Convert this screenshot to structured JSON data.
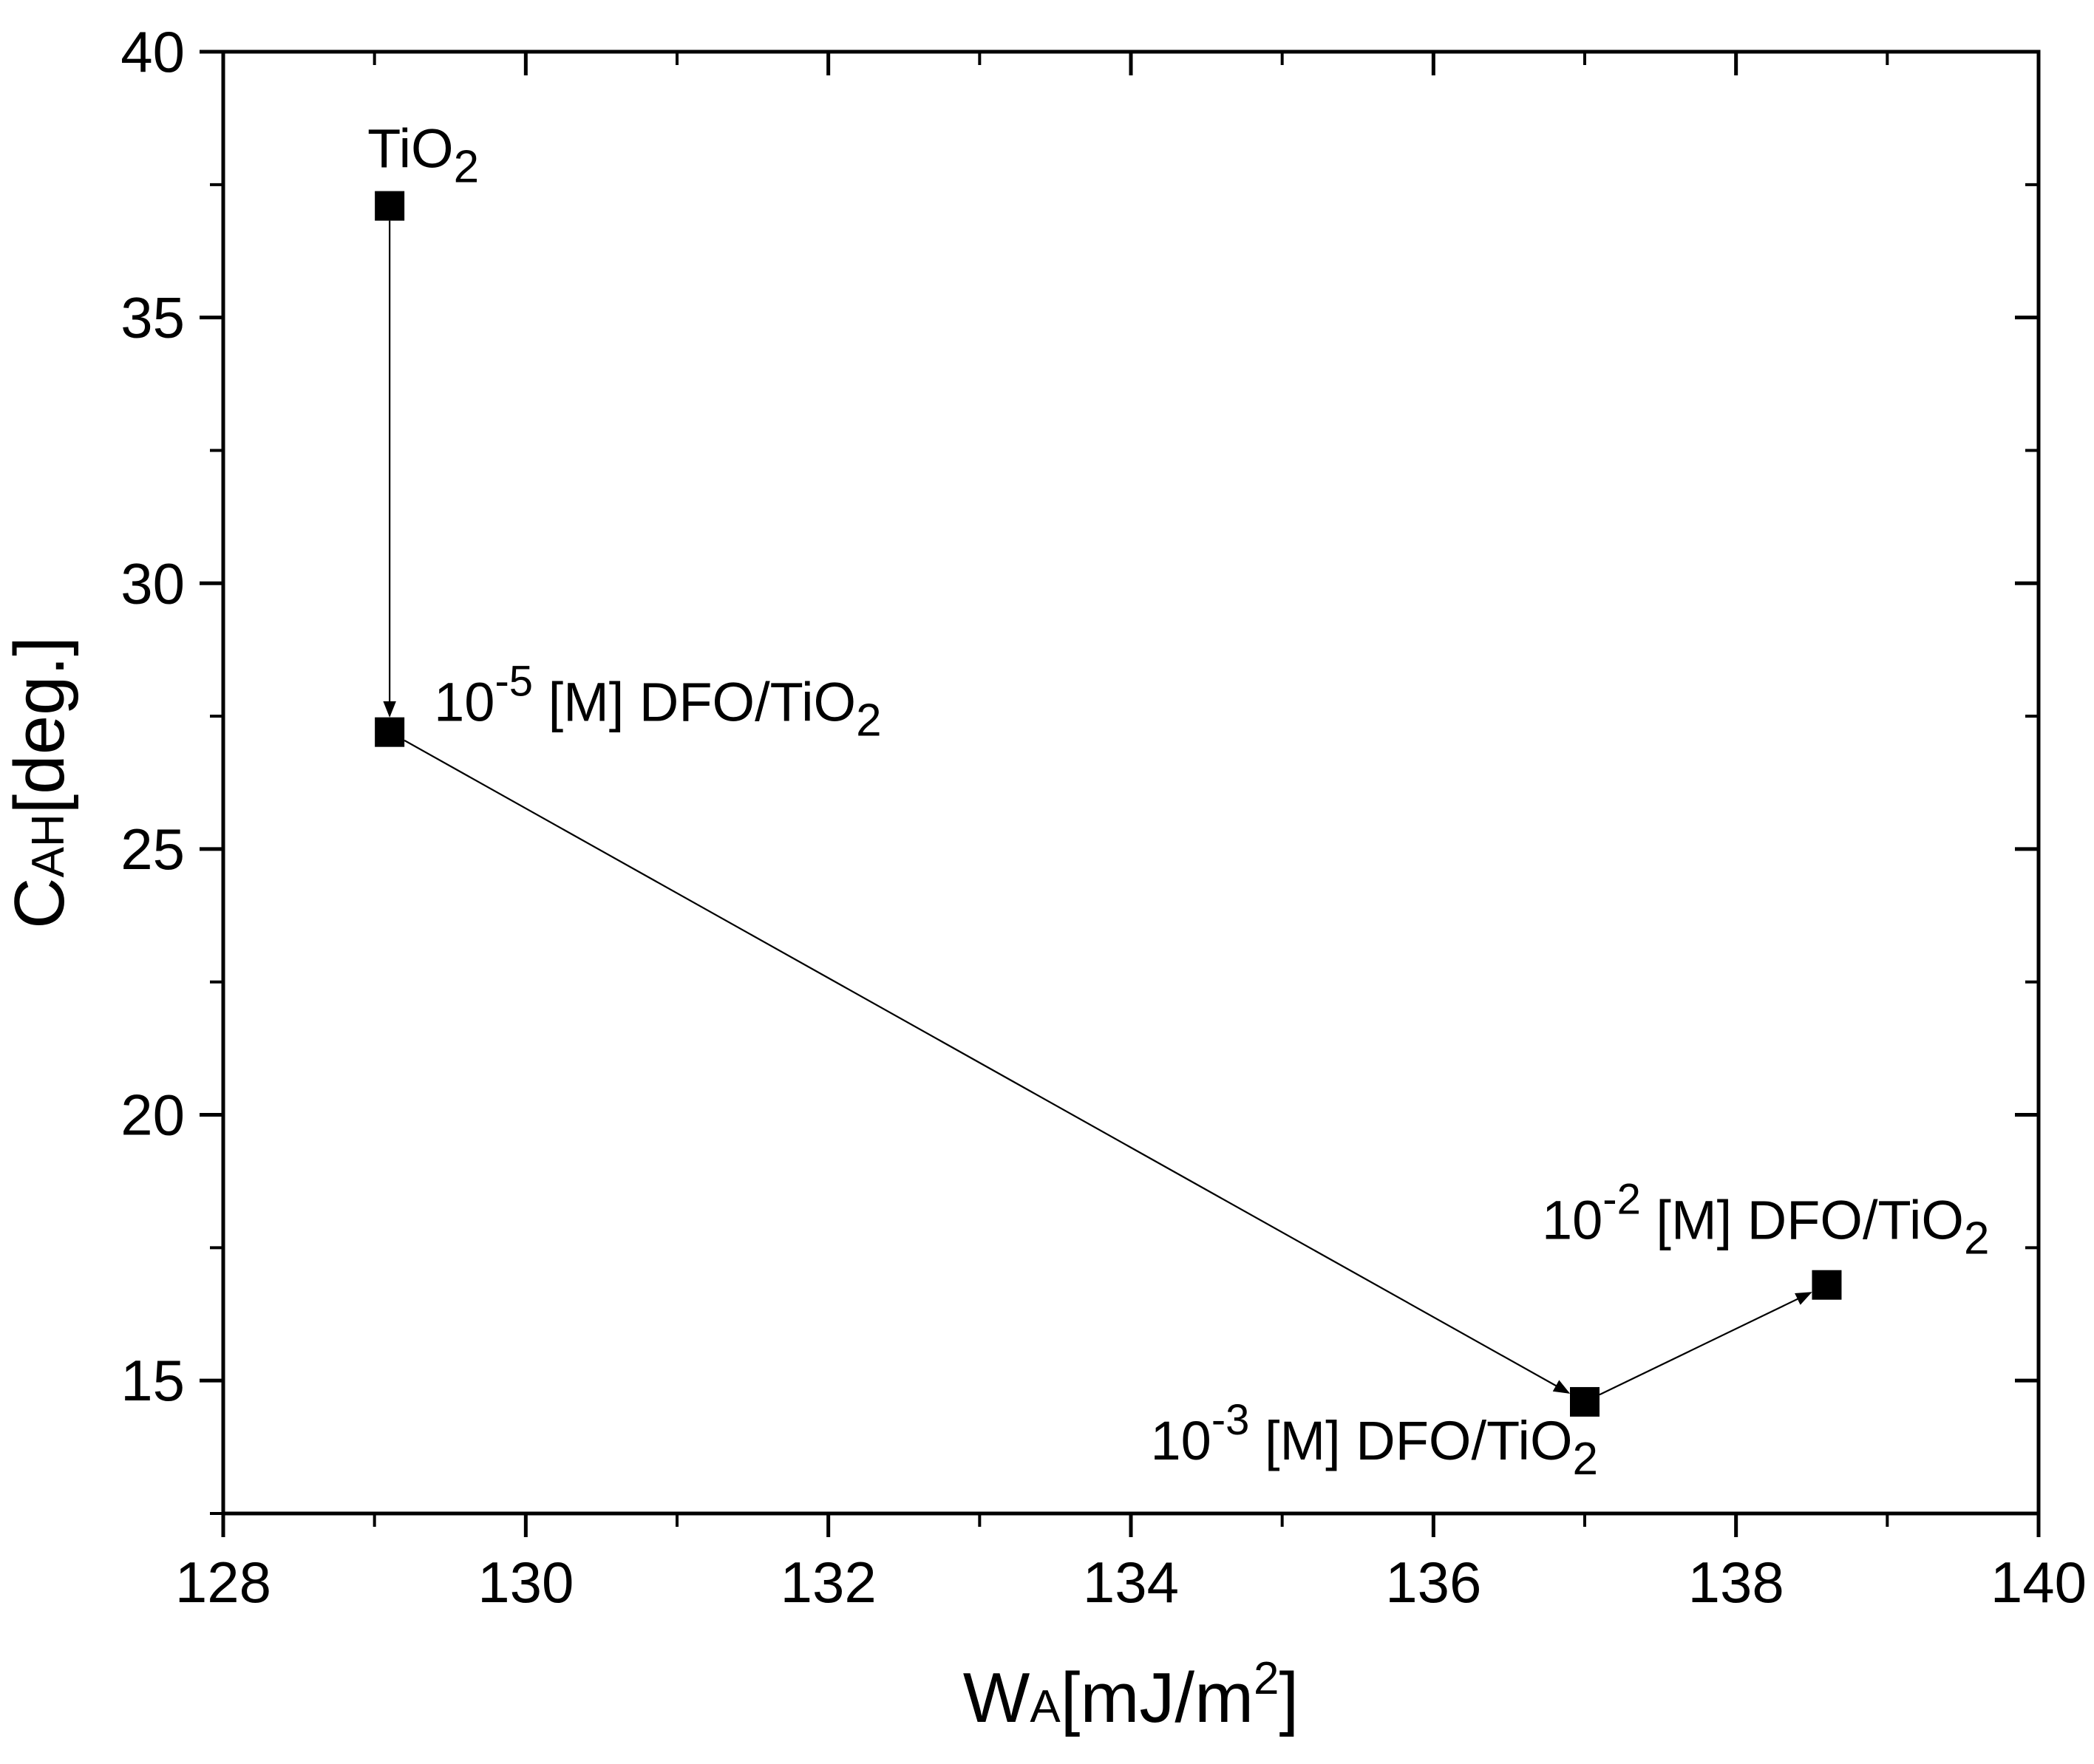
{
  "chart_data": {
    "type": "scatter",
    "xlabel": {
      "main": "W",
      "sub": "A",
      "rest": "[mJ/m",
      "sup": "2",
      "close": "]"
    },
    "ylabel": {
      "main": "C",
      "sub": "AH",
      "rest": "[deg.]"
    },
    "xlim": [
      128,
      140
    ],
    "ylim": [
      12.5,
      40
    ],
    "xticks": [
      128,
      130,
      132,
      134,
      136,
      138,
      140
    ],
    "yticks": [
      15,
      20,
      25,
      30,
      35,
      40
    ],
    "grid": false,
    "points": [
      {
        "x": 129.1,
        "y": 37.1,
        "label": {
          "pre": "TiO",
          "exp": "",
          "post": "",
          "sub": "2"
        }
      },
      {
        "x": 129.1,
        "y": 27.2,
        "label": {
          "pre": "10",
          "exp": "-5",
          "post": " [M] DFO/TiO",
          "sub": "2"
        }
      },
      {
        "x": 137.0,
        "y": 14.6,
        "label": {
          "pre": "10",
          "exp": "-3",
          "post": " [M] DFO/TiO",
          "sub": "2"
        }
      },
      {
        "x": 138.6,
        "y": 16.8,
        "label": {
          "pre": "10",
          "exp": "-2",
          "post": " [M] DFO/TiO",
          "sub": "2"
        }
      }
    ],
    "arrows": [
      [
        0,
        1
      ],
      [
        1,
        2
      ],
      [
        2,
        3
      ]
    ]
  }
}
